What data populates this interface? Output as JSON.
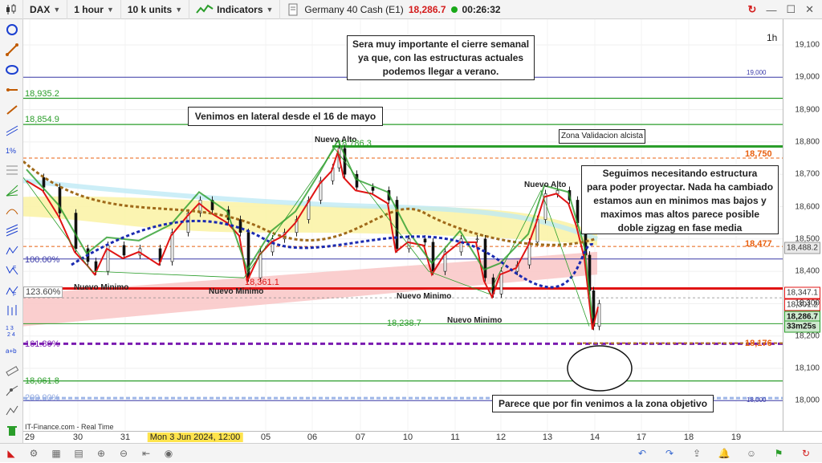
{
  "toolbar": {
    "symbol": "DAX",
    "timeframe": "1 hour",
    "units": "10 k units",
    "indicators": "Indicators",
    "instrument": "Germany 40 Cash (E1)",
    "price": "18,286.7",
    "countdown": "00:26:32"
  },
  "chart": {
    "timeframe_label": "1h",
    "source": "IT-Finance.com - Real Time",
    "colors": {
      "up": "#11a311",
      "down": "#e01414",
      "zone": "#f9c5c5",
      "band": "#fbf3a8"
    }
  },
  "notes": {
    "weekly_close": "Sera muy importante el cierre semanal\nya que, con las estructuras actuales\npodemos llegar a verano.",
    "lateral": "Venimos en lateral desde el 16 de mayo",
    "zona": "Zona Validacion alcista",
    "seguimos": "Seguimos necesitando estructura\npara poder proyectar. Nada ha cambiado\nestamos aun en minimos mas bajos y\nmaximos mas altos parece posible\ndoble zigzag en fase media",
    "objetivo": "Parece que por fin venimos a la zona objetivo"
  },
  "annotations": {
    "nuevo_minimo": "Nuevo Minimo",
    "nuevo_alto": "Nuevo Alto"
  },
  "levels": {
    "l18935": "18,935.2",
    "l18854": "18,854.9",
    "l18786": "18,786.3",
    "l18361": "18,361.1",
    "l18238": "18,238.7",
    "l18061": "18,061.8",
    "pct100": "100.00%",
    "pct123": "123.60%",
    "pct161": "161.80%",
    "pct200": "200.00%",
    "r19000": "19,000",
    "r18750": "18,750",
    "r18477": "18,477",
    "r18176": "18,176",
    "r18000": "18,000"
  },
  "yaxis": {
    "ticks": [
      "19,100",
      "19,000",
      "18,900",
      "18,800",
      "18,700",
      "18,600",
      "18,500",
      "18,400",
      "18,300",
      "18,200",
      "18,100",
      "18,000"
    ],
    "labels": {
      "a": "18,488.2",
      "b": "18,347.1",
      "c": "18,301.2",
      "d": "18,286.7",
      "timer": "33m25s"
    }
  },
  "xaxis": {
    "ticks": [
      "29",
      "30",
      "31",
      "05",
      "06",
      "07",
      "10",
      "11",
      "12",
      "13",
      "14",
      "17",
      "18",
      "19"
    ],
    "cursor": "Mon 3 Jun 2024, 12:00"
  }
}
